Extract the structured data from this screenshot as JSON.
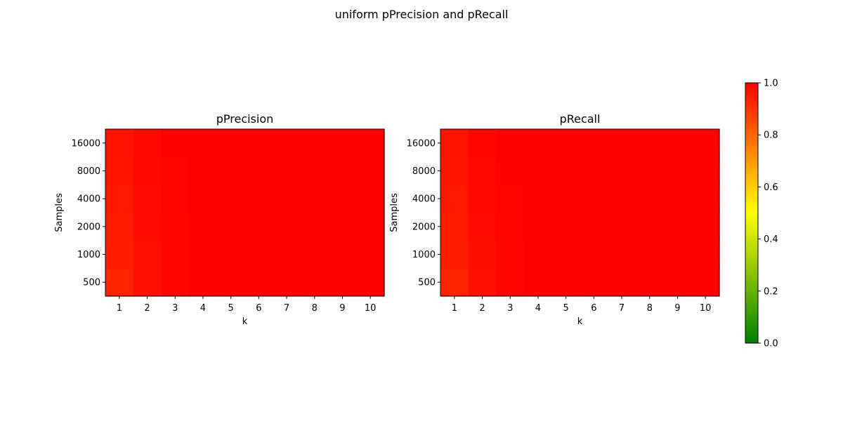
{
  "title": "uniform pPrecision and pRecall",
  "colorbar": {
    "colors": [
      "#008000",
      "#ffff00",
      "#ff0000"
    ],
    "vmin": 0.0,
    "vmax": 1.0,
    "ticks": [
      0.0,
      0.2,
      0.4,
      0.6,
      0.8,
      1.0
    ],
    "tick_labels": [
      "0.0",
      "0.2",
      "0.4",
      "0.6",
      "0.8",
      "1.0"
    ]
  },
  "chart_data": [
    {
      "type": "heatmap",
      "title": "pPrecision",
      "xlabel": "k",
      "ylabel": "Samples",
      "x": [
        "1",
        "2",
        "3",
        "4",
        "5",
        "6",
        "7",
        "8",
        "9",
        "10"
      ],
      "y": [
        "500",
        "1000",
        "2000",
        "4000",
        "8000",
        "16000"
      ],
      "values": [
        [
          0.93,
          0.97,
          0.99,
          1.0,
          1.0,
          1.0,
          1.0,
          1.0,
          1.0,
          1.0
        ],
        [
          0.94,
          0.97,
          0.99,
          1.0,
          1.0,
          1.0,
          1.0,
          1.0,
          1.0,
          1.0
        ],
        [
          0.95,
          0.98,
          0.99,
          1.0,
          1.0,
          1.0,
          1.0,
          1.0,
          1.0,
          1.0
        ],
        [
          0.955,
          0.98,
          0.995,
          1.0,
          1.0,
          1.0,
          1.0,
          1.0,
          1.0,
          1.0
        ],
        [
          0.96,
          0.985,
          0.995,
          1.0,
          1.0,
          1.0,
          1.0,
          1.0,
          1.0,
          1.0
        ],
        [
          0.965,
          0.985,
          1.0,
          1.0,
          1.0,
          1.0,
          1.0,
          1.0,
          1.0,
          1.0
        ]
      ]
    },
    {
      "type": "heatmap",
      "title": "pRecall",
      "xlabel": "k",
      "ylabel": "Samples",
      "x": [
        "1",
        "2",
        "3",
        "4",
        "5",
        "6",
        "7",
        "8",
        "9",
        "10"
      ],
      "y": [
        "500",
        "1000",
        "2000",
        "4000",
        "8000",
        "16000"
      ],
      "values": [
        [
          0.93,
          0.97,
          0.99,
          1.0,
          1.0,
          1.0,
          1.0,
          1.0,
          1.0,
          1.0
        ],
        [
          0.94,
          0.975,
          0.99,
          1.0,
          1.0,
          1.0,
          1.0,
          1.0,
          1.0,
          1.0
        ],
        [
          0.95,
          0.98,
          0.995,
          1.0,
          1.0,
          1.0,
          1.0,
          1.0,
          1.0,
          1.0
        ],
        [
          0.955,
          0.985,
          0.995,
          1.0,
          1.0,
          1.0,
          1.0,
          1.0,
          1.0,
          1.0
        ],
        [
          0.96,
          0.985,
          1.0,
          1.0,
          1.0,
          1.0,
          1.0,
          1.0,
          1.0,
          1.0
        ],
        [
          0.965,
          0.99,
          1.0,
          1.0,
          1.0,
          1.0,
          1.0,
          1.0,
          1.0,
          1.0
        ]
      ]
    }
  ]
}
